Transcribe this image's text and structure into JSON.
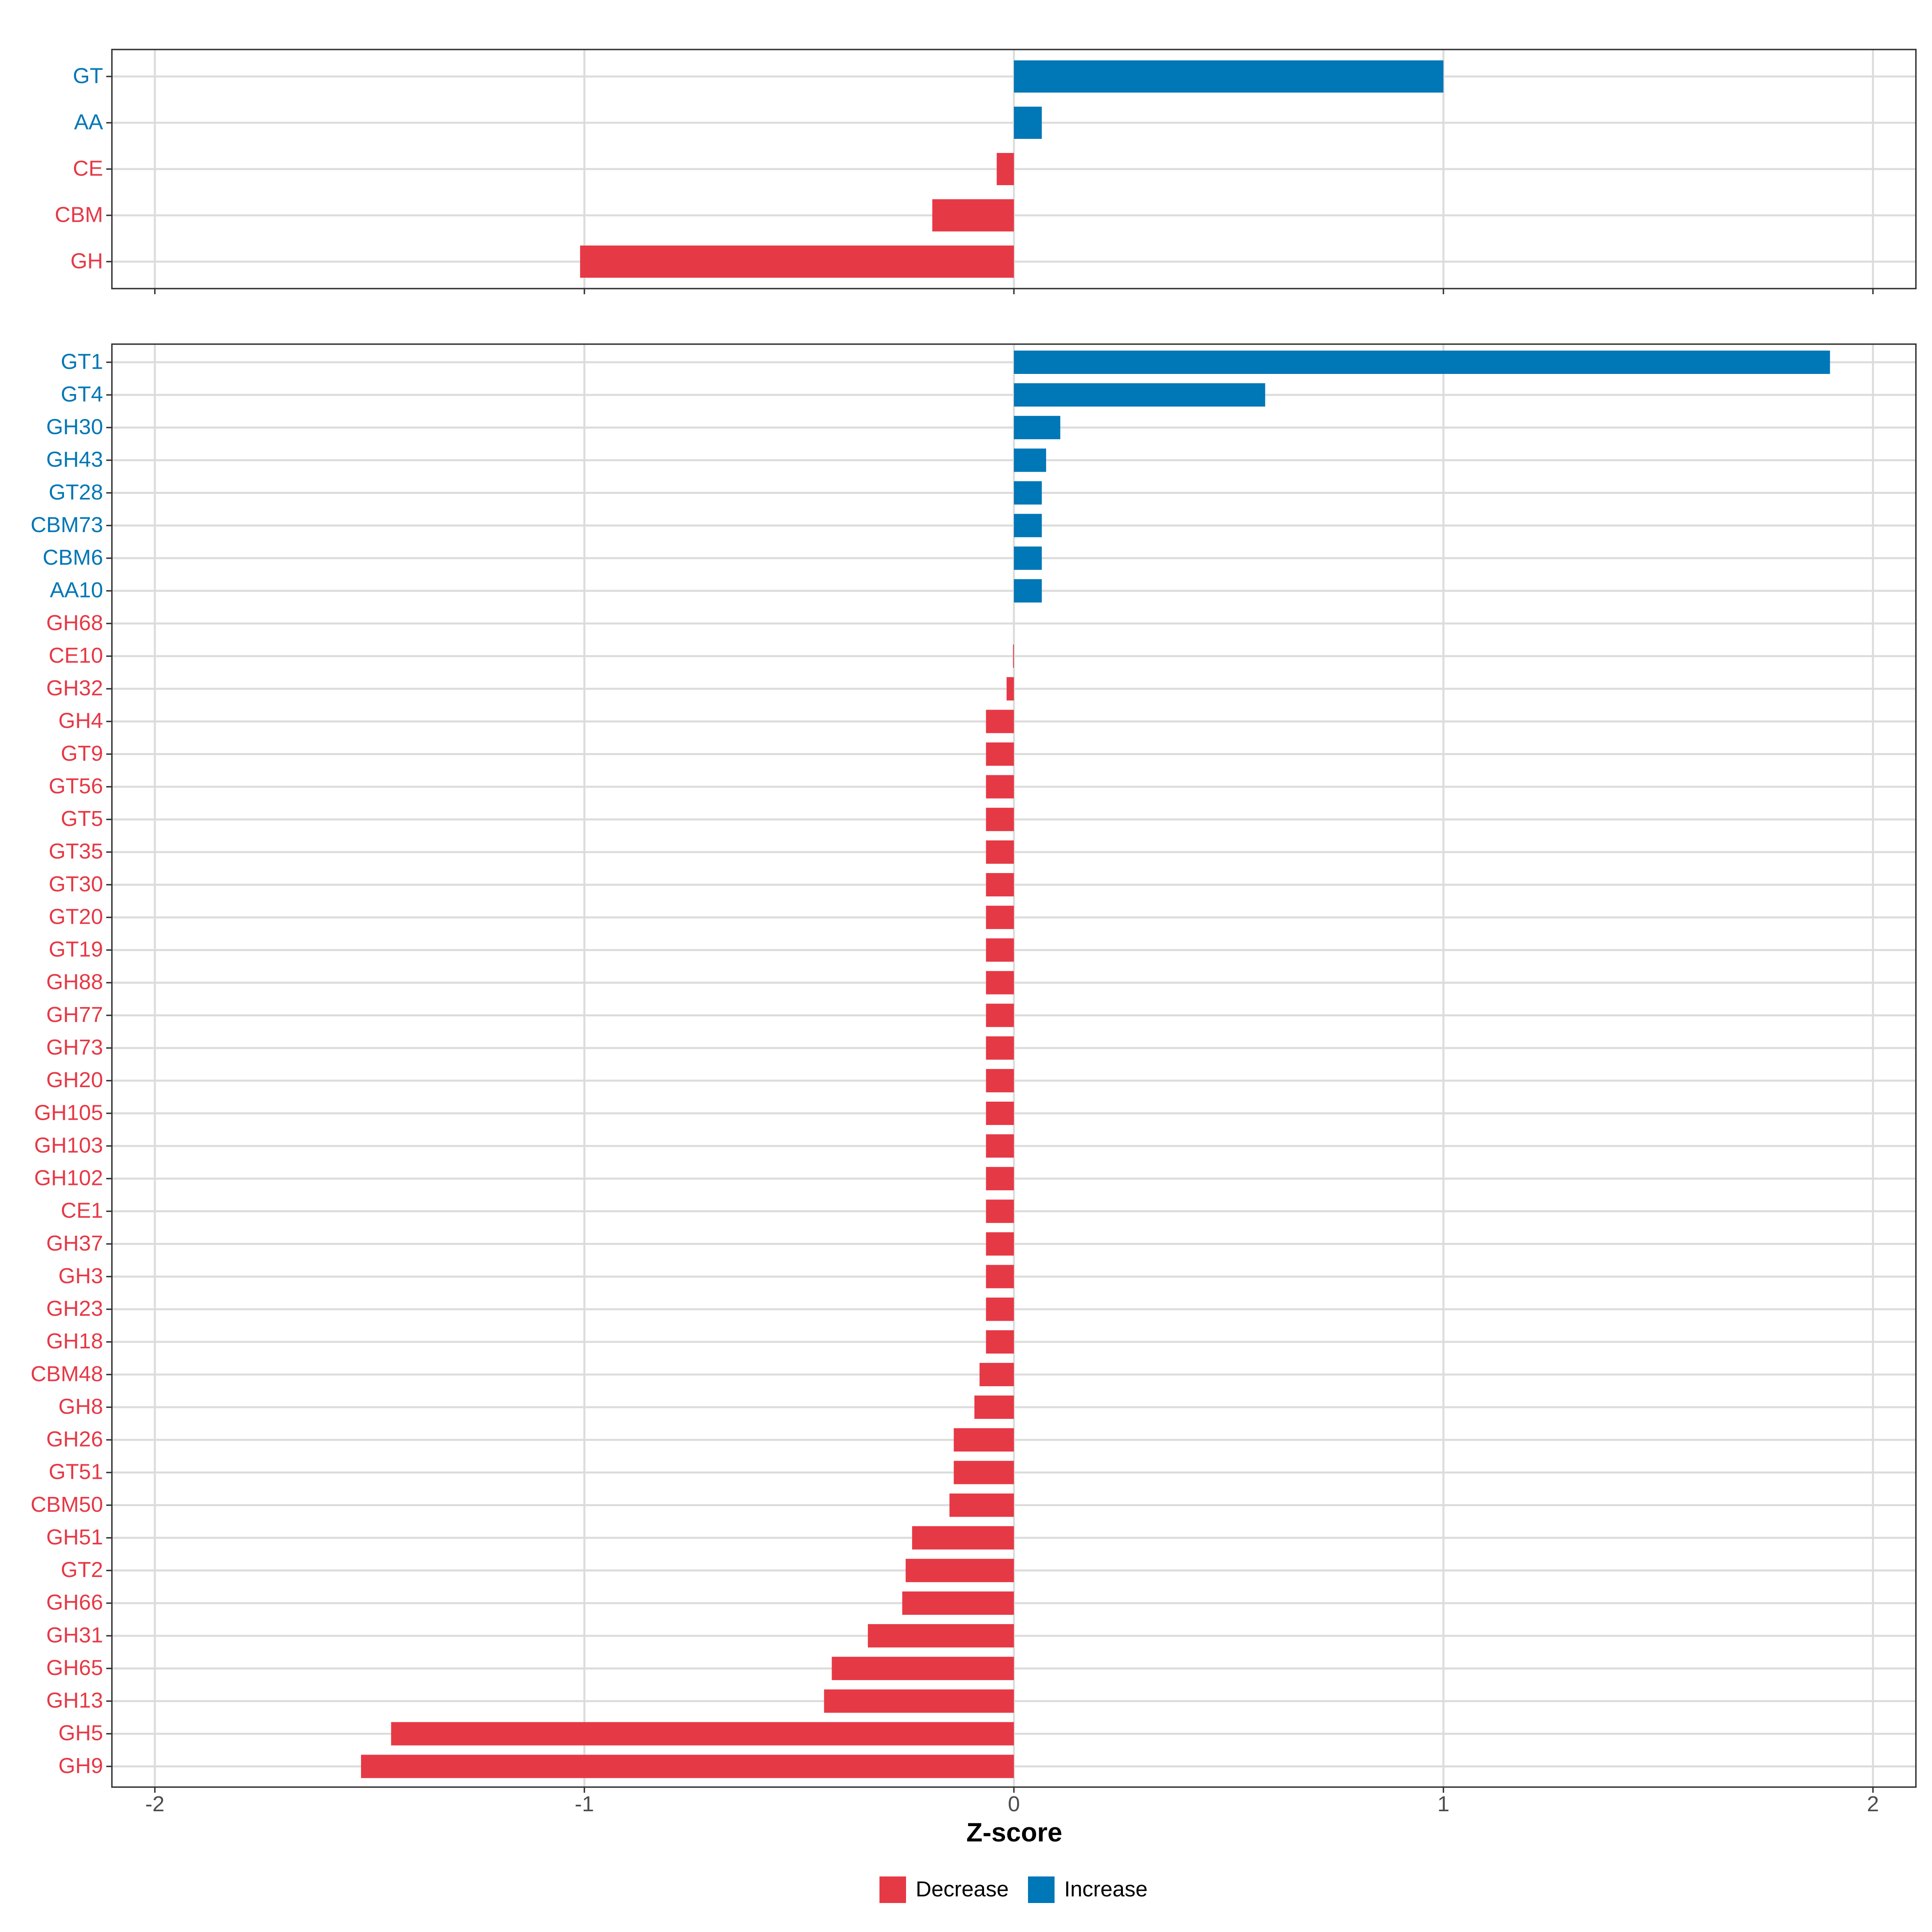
{
  "colors": {
    "decrease": "#E63946",
    "increase": "#0077B6"
  },
  "chart_data": [
    {
      "type": "bar",
      "orientation": "horizontal",
      "panel": "family",
      "categories": [
        "GT",
        "AA",
        "CE",
        "CBM",
        "GH"
      ],
      "values": [
        1.0,
        0.065,
        -0.04,
        -0.19,
        -1.01
      ],
      "direction": [
        "Increase",
        "Increase",
        "Decrease",
        "Decrease",
        "Decrease"
      ],
      "xlim": [
        -2.1,
        2.1
      ],
      "xticks": [
        -2,
        -1,
        0,
        1,
        2
      ],
      "grid": true
    },
    {
      "type": "bar",
      "orientation": "horizontal",
      "panel": "subfamily",
      "categories": [
        "GT1",
        "GT4",
        "GH30",
        "GH43",
        "GT28",
        "CBM73",
        "CBM6",
        "AA10",
        "GH68",
        "CE10",
        "GH32",
        "GH4",
        "GT9",
        "GT56",
        "GT5",
        "GT35",
        "GT30",
        "GT20",
        "GT19",
        "GH88",
        "GH77",
        "GH73",
        "GH20",
        "GH105",
        "GH103",
        "GH102",
        "CE1",
        "GH37",
        "GH3",
        "GH23",
        "GH18",
        "CBM48",
        "GH8",
        "GH26",
        "GT51",
        "CBM50",
        "GH51",
        "GT2",
        "GH66",
        "GH31",
        "GH65",
        "GH13",
        "GH5",
        "GH9"
      ],
      "values": [
        1.9,
        0.585,
        0.108,
        0.075,
        0.065,
        0.065,
        0.065,
        0.065,
        0.0,
        -0.002,
        -0.017,
        -0.065,
        -0.065,
        -0.065,
        -0.065,
        -0.065,
        -0.065,
        -0.065,
        -0.065,
        -0.065,
        -0.065,
        -0.065,
        -0.065,
        -0.065,
        -0.065,
        -0.065,
        -0.065,
        -0.065,
        -0.065,
        -0.065,
        -0.065,
        -0.08,
        -0.092,
        -0.14,
        -0.14,
        -0.15,
        -0.237,
        -0.252,
        -0.26,
        -0.34,
        -0.424,
        -0.442,
        -1.45,
        -1.52
      ],
      "direction": [
        "Increase",
        "Increase",
        "Increase",
        "Increase",
        "Increase",
        "Increase",
        "Increase",
        "Increase",
        "Decrease",
        "Decrease",
        "Decrease",
        "Decrease",
        "Decrease",
        "Decrease",
        "Decrease",
        "Decrease",
        "Decrease",
        "Decrease",
        "Decrease",
        "Decrease",
        "Decrease",
        "Decrease",
        "Decrease",
        "Decrease",
        "Decrease",
        "Decrease",
        "Decrease",
        "Decrease",
        "Decrease",
        "Decrease",
        "Decrease",
        "Decrease",
        "Decrease",
        "Decrease",
        "Decrease",
        "Decrease",
        "Decrease",
        "Decrease",
        "Decrease",
        "Decrease",
        "Decrease",
        "Decrease",
        "Decrease",
        "Decrease"
      ],
      "xlim": [
        -2.1,
        2.1
      ],
      "xticks": [
        -2,
        -1,
        0,
        1,
        2
      ],
      "xtick_labels": [
        "-2",
        "-1",
        "0",
        "1",
        "2"
      ],
      "xlabel": "Z-score",
      "grid": true
    }
  ],
  "legend": {
    "position": "bottom",
    "items": [
      {
        "label": "Decrease",
        "key": "decrease"
      },
      {
        "label": "Increase",
        "key": "increase"
      }
    ]
  }
}
